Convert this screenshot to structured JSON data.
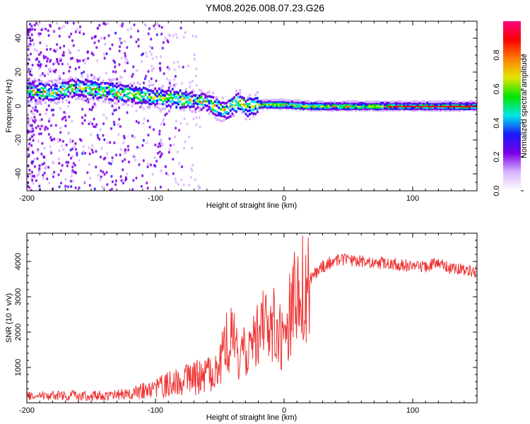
{
  "title": "YM08.2026.008.07.23.G26",
  "chart_data": [
    {
      "type": "heatmap",
      "name": "spectrogram",
      "xlabel": "Height of straight line (km)",
      "ylabel": "Frequency (Hz)",
      "xlim": [
        -200,
        150
      ],
      "ylim": [
        -50,
        50
      ],
      "x_ticks": [
        -200,
        -100,
        0,
        100
      ],
      "x_tick_labels": [
        "-200",
        "-100",
        "0",
        "100"
      ],
      "y_ticks": [
        -40,
        -20,
        0,
        20,
        40
      ],
      "y_tick_labels": [
        "-40",
        "-20",
        "0",
        "20",
        "40"
      ],
      "ridge": {
        "x": [
          -200,
          -190,
          -180,
          -170,
          -160,
          -150,
          -140,
          -130,
          -120,
          -110,
          -100,
          -90,
          -80,
          -70,
          -60,
          -50,
          -45,
          -40,
          -35,
          -30,
          -25,
          -20,
          -10,
          0,
          20,
          50,
          90,
          150
        ],
        "frequency": [
          9,
          8,
          8,
          10,
          11,
          10,
          9,
          8,
          7,
          6,
          5,
          5,
          4,
          3,
          2,
          -2,
          -3,
          1,
          3,
          -1,
          0,
          1,
          1,
          1,
          0,
          0,
          0,
          0
        ]
      },
      "colorbar": {
        "label": "Normalized spectral amplitude",
        "range": [
          0,
          1
        ],
        "ticks": [
          0.0,
          0.2,
          0.4,
          0.6,
          0.8
        ],
        "tick_labels": [
          "0.0",
          "0.2",
          "0.4",
          "0.6",
          "0.8"
        ],
        "colormap": [
          "#ffffff",
          "#d9b3ff",
          "#7a00e6",
          "#1a1aff",
          "#00e6e6",
          "#00e600",
          "#e6e600",
          "#ff7f00",
          "#ff0000",
          "#ff0080"
        ]
      }
    },
    {
      "type": "line",
      "name": "snr",
      "xlabel": "Height of straight line (km)",
      "ylabel": "SNR (10 * v/v)",
      "xlim": [
        -200,
        150
      ],
      "ylim": [
        0,
        4800
      ],
      "x_ticks": [
        -200,
        -100,
        0,
        100
      ],
      "x_tick_labels": [
        "-200",
        "-100",
        "0",
        "100"
      ],
      "y_ticks": [
        1000,
        2000,
        3000,
        4000
      ],
      "y_tick_labels": [
        "1000",
        "2000",
        "3000",
        "4000"
      ],
      "series": [
        {
          "name": "SNR",
          "color": "#ee3333",
          "x": [
            -200,
            -180,
            -160,
            -140,
            -120,
            -110,
            -100,
            -90,
            -80,
            -70,
            -60,
            -50,
            -45,
            -40,
            -35,
            -30,
            -25,
            -20,
            -15,
            -10,
            -5,
            0,
            5,
            10,
            20,
            30,
            40,
            50,
            60,
            70,
            80,
            90,
            100,
            110,
            120,
            130,
            140,
            150
          ],
          "y": [
            180,
            200,
            210,
            210,
            250,
            330,
            420,
            520,
            600,
            700,
            800,
            1100,
            1800,
            2000,
            1300,
            1500,
            1600,
            2000,
            2100,
            2200,
            2100,
            1500,
            2500,
            3000,
            3500,
            3850,
            4050,
            4050,
            4000,
            3950,
            3950,
            3900,
            3900,
            3850,
            3950,
            3800,
            3750,
            3700
          ]
        }
      ]
    }
  ]
}
